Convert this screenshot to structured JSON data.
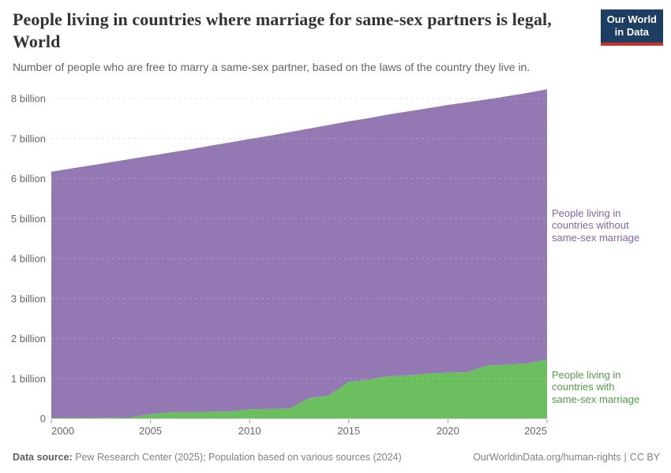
{
  "header": {
    "logo": {
      "line1": "Our World",
      "line2": "in Data"
    }
  },
  "chart_data": {
    "type": "area",
    "stacked": true,
    "title": "People living in countries where marriage for same-sex partners is legal, World",
    "subtitle": "Number of people who are free to marry a same-sex partner, based on the laws of the country they live in.",
    "unit": "people (billions)",
    "xlabel": "",
    "ylabel": "",
    "grid": "dashed horizontal",
    "legend_position": "right-inline",
    "xlim": [
      2000,
      2025
    ],
    "ylim": [
      0,
      8.5
    ],
    "x": [
      2000,
      2001,
      2002,
      2003,
      2004,
      2005,
      2006,
      2007,
      2008,
      2009,
      2010,
      2011,
      2012,
      2013,
      2014,
      2015,
      2016,
      2017,
      2018,
      2019,
      2020,
      2021,
      2022,
      2023,
      2024,
      2025
    ],
    "xticks": [
      2000,
      2005,
      2010,
      2015,
      2020,
      2025
    ],
    "xtick_labels": [
      "2000",
      "2005",
      "2010",
      "2015",
      "2020",
      "2025"
    ],
    "yticks": [
      0,
      1,
      2,
      3,
      4,
      5,
      6,
      7,
      8
    ],
    "ytick_labels": [
      "0",
      "1 billion",
      "2 billion",
      "3 billion",
      "4 billion",
      "5 billion",
      "6 billion",
      "7 billion",
      "8 billion"
    ],
    "series": [
      {
        "name": "People living in countries with same-sex marriage",
        "label_lines": [
          "People living in",
          "countries with",
          "same-sex marriage"
        ],
        "color": "#6bbf5f",
        "label_color": "#4fa044",
        "values": [
          0.02,
          0.02,
          0.02,
          0.03,
          0.03,
          0.11,
          0.16,
          0.16,
          0.17,
          0.18,
          0.23,
          0.24,
          0.25,
          0.51,
          0.58,
          0.92,
          0.97,
          1.06,
          1.08,
          1.13,
          1.15,
          1.16,
          1.33,
          1.35,
          1.38,
          1.48
        ]
      },
      {
        "name": "People living in countries without same-sex marriage",
        "label_lines": [
          "People living in",
          "countries without",
          "same-sex marriage"
        ],
        "color": "#9478b4",
        "label_color": "#8465a5",
        "values": [
          6.15,
          6.23,
          6.31,
          6.38,
          6.46,
          6.46,
          6.49,
          6.57,
          6.65,
          6.72,
          6.76,
          6.83,
          6.91,
          6.74,
          6.76,
          6.51,
          6.54,
          6.54,
          6.6,
          6.63,
          6.69,
          6.75,
          6.65,
          6.71,
          6.76,
          6.75
        ]
      }
    ],
    "colors": {
      "gridline": "#d7d7d7",
      "axis_text": "#666666",
      "tick": "#999999"
    }
  },
  "footer": {
    "source_label": "Data source:",
    "source_text": "Pew Research Center (2025); Population based on various sources (2024)",
    "link": "OurWorldinData.org/human-rights",
    "separator": "|",
    "license": "CC BY"
  }
}
